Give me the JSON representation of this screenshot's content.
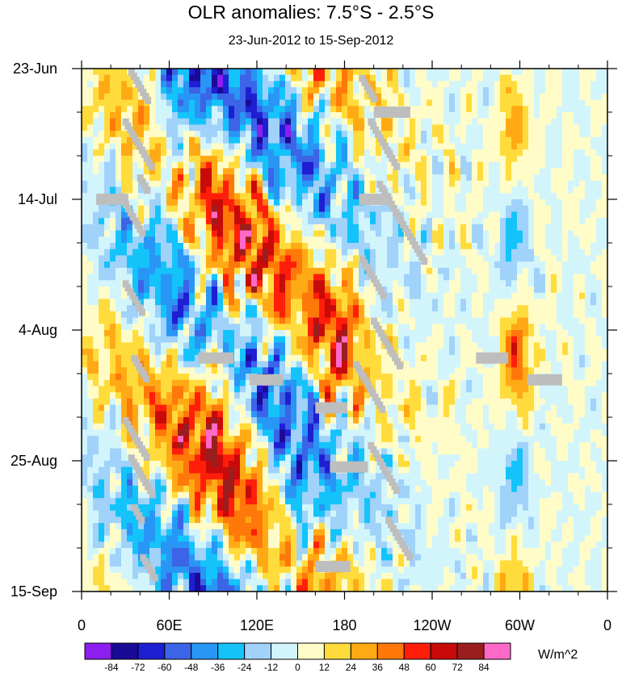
{
  "chart_data": {
    "type": "heatmap",
    "title": "OLR anomalies: 7.5°S - 2.5°S",
    "subtitle": "23-Jun-2012 to 15-Sep-2012",
    "x_axis": {
      "label": "",
      "ticks": [
        "0",
        "60E",
        "120E",
        "180",
        "120W",
        "60W",
        "0"
      ],
      "range_deg_east": [
        0,
        360
      ]
    },
    "y_axis": {
      "label": "",
      "ticks": [
        "23-Jun",
        "14-Jul",
        "4-Aug",
        "25-Aug",
        "15-Sep"
      ],
      "range": [
        "2012-06-23",
        "2012-09-15"
      ],
      "inverted": true
    },
    "colorbar": {
      "units": "W/m^2",
      "levels": [
        "-84",
        "-72",
        "-60",
        "-48",
        "-36",
        "-24",
        "-12",
        "0",
        "12",
        "24",
        "36",
        "48",
        "60",
        "72",
        "84"
      ],
      "colors": [
        "#8c1ef0",
        "#1a0a96",
        "#1e1ed2",
        "#3c64e6",
        "#2896f5",
        "#14c3fa",
        "#a0d2fa",
        "#d2f5fc",
        "#fffcc8",
        "#ffdc3c",
        "#ffaa14",
        "#ff780a",
        "#ff1e0a",
        "#c80a0a",
        "#9b1e1e",
        "#ff69c8"
      ]
    },
    "field_description": {
      "mean_pattern": "Alternating positive and negative OLR anomaly bands drifting eastward across 0-200 deg E; weak anomalies over the eastern Pacific; narrow active band near 60-70W"
    },
    "missing_color": "#bebebe"
  }
}
